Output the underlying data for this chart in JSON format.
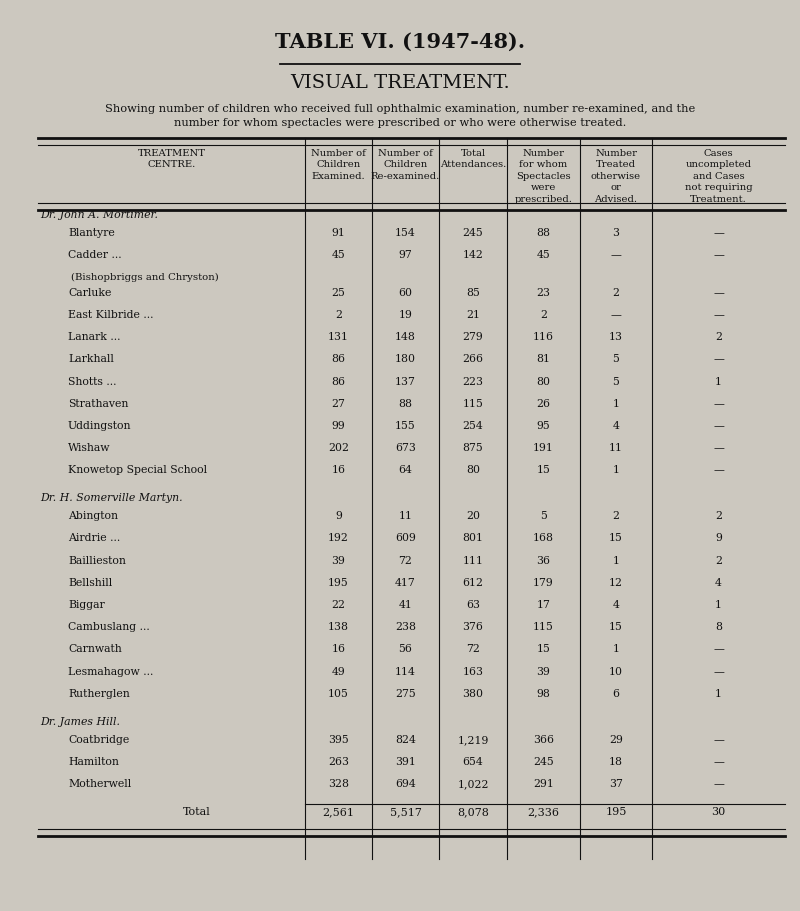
{
  "title1": "TABLE VI. (1947-48).",
  "title2": "VISUAL TREATMENT.",
  "subtitle": "Showing number of children who received full ophthalmic examination, number re-examined, and the\nnumber for whom spectacles were prescribed or who were otherwise treated.",
  "col_headers": [
    "TREATMENT\nCENTRE.",
    "Number of\nChildren\nExamined.",
    "Number of\nChildren\nRe-examined.",
    "Total\nAttendances.",
    "Number\nfor whom\nSpectacles\nwere\nprescribed.",
    "Number\nTreated\notherwise\nor\nAdvised.",
    "Cases\nuncompleted\nand Cases\nnot requiring\nTreatment."
  ],
  "sections": [
    {
      "doctor": "Dr. John A. Mortimer.",
      "doctor_style": "smallcaps",
      "rows": [
        [
          "Blantyre",
          "91",
          "154",
          "245",
          "88",
          "3",
          "—"
        ],
        [
          "Cadder ...",
          "45",
          "97",
          "142",
          "45",
          "—",
          "—"
        ],
        [
          "  (Bishopbriggs and Chryston)",
          "",
          "",
          "",
          "",
          "",
          ""
        ],
        [
          "Carluke",
          "25",
          "60",
          "85",
          "23",
          "2",
          "—"
        ],
        [
          "East Kilbride ...",
          "2",
          "19",
          "21",
          "2",
          "—",
          "—"
        ],
        [
          "Lanark ...",
          "131",
          "148",
          "279",
          "116",
          "13",
          "2"
        ],
        [
          "Larkhall",
          "86",
          "180",
          "266",
          "81",
          "5",
          "—"
        ],
        [
          "Shotts ...",
          "86",
          "137",
          "223",
          "80",
          "5",
          "1"
        ],
        [
          "Strathaven",
          "27",
          "88",
          "115",
          "26",
          "1",
          "—"
        ],
        [
          "Uddingston",
          "99",
          "155",
          "254",
          "95",
          "4",
          "—"
        ],
        [
          "Wishaw",
          "202",
          "673",
          "875",
          "191",
          "11",
          "—"
        ],
        [
          "Knowetop Special School",
          "16",
          "64",
          "80",
          "15",
          "1",
          "—"
        ]
      ]
    },
    {
      "doctor": "Dr. H. Somerville Martyn.",
      "doctor_style": "smallcaps",
      "rows": [
        [
          "Abington",
          "9",
          "11",
          "20",
          "5",
          "2",
          "2"
        ],
        [
          "Airdrie ...",
          "192",
          "609",
          "801",
          "168",
          "15",
          "9"
        ],
        [
          "Baillieston",
          "39",
          "72",
          "111",
          "36",
          "1",
          "2"
        ],
        [
          "Bellshill",
          "195",
          "417",
          "612",
          "179",
          "12",
          "4"
        ],
        [
          "Biggar",
          "22",
          "41",
          "63",
          "17",
          "4",
          "1"
        ],
        [
          "Cambuslang ...",
          "138",
          "238",
          "376",
          "115",
          "15",
          "8"
        ],
        [
          "Carnwath",
          "16",
          "56",
          "72",
          "15",
          "1",
          "—"
        ],
        [
          "Lesmahagow ...",
          "49",
          "114",
          "163",
          "39",
          "10",
          "—"
        ],
        [
          "Rutherglen",
          "105",
          "275",
          "380",
          "98",
          "6",
          "1"
        ]
      ]
    },
    {
      "doctor": "Dr. James Hill.",
      "doctor_style": "smallcaps",
      "rows": [
        [
          "Coatbridge",
          "395",
          "824",
          "1,219",
          "366",
          "29",
          "—"
        ],
        [
          "Hamilton",
          "263",
          "391",
          "654",
          "245",
          "18",
          "—"
        ],
        [
          "Motherwell",
          "328",
          "694",
          "1,022",
          "291",
          "37",
          "—"
        ]
      ]
    }
  ],
  "total_row": [
    "Total",
    "2,561",
    "5,517",
    "8,078",
    "2,336",
    "195",
    "30"
  ],
  "bg_color": "#ccc8bf",
  "text_color": "#111111",
  "line_color": "#111111",
  "fig_width": 8.0,
  "fig_height": 9.12,
  "dpi": 100
}
